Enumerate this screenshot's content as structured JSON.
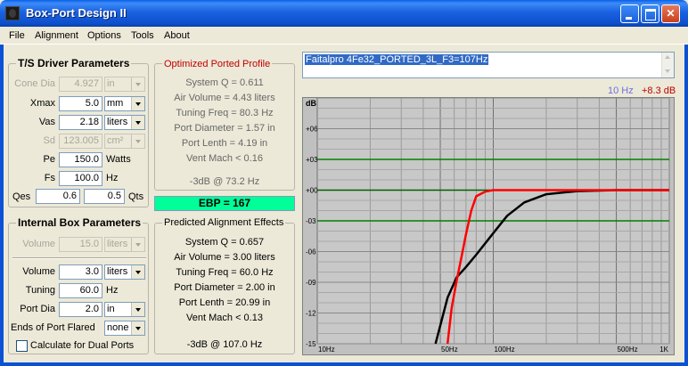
{
  "window": {
    "title": "Box-Port Design II"
  },
  "menu": [
    "File",
    "Alignment",
    "Options",
    "Tools",
    "About"
  ],
  "ts": {
    "title": "T/S Driver Parameters",
    "cone_dia": {
      "label": "Cone Dia",
      "value": "4.927",
      "unit": "in"
    },
    "xmax": {
      "label": "Xmax",
      "value": "5.0",
      "unit": "mm"
    },
    "vas": {
      "label": "Vas",
      "value": "2.18",
      "unit": "liters"
    },
    "sd": {
      "label": "Sd",
      "value": "123.005",
      "unit": "cm²"
    },
    "pe": {
      "label": "Pe",
      "value": "150.0",
      "unit": "Watts"
    },
    "fs": {
      "label": "Fs",
      "value": "100.0",
      "unit": "Hz"
    },
    "qes": {
      "label": "Qes",
      "value": "0.6"
    },
    "qts": {
      "label": "Qts",
      "value": "0.5"
    }
  },
  "opt": {
    "title": "Optimized Ported Profile",
    "lines": [
      "System Q = 0.611",
      "Air Volume = 4.43 liters",
      "Tuning Freq = 80.3 Hz",
      "Port Diameter = 1.57 in",
      "Port Lenth = 4.19 in",
      "Vent Mach < 0.16"
    ],
    "f3": "-3dB @ 73.2 Hz"
  },
  "ebp": "EBP = 167",
  "box": {
    "title": "Internal Box Parameters",
    "volume_dis": {
      "label": "Volume",
      "value": "15.0",
      "unit": "liters"
    },
    "volume": {
      "label": "Volume",
      "value": "3.0",
      "unit": "liters"
    },
    "tuning": {
      "label": "Tuning",
      "value": "60.0",
      "unit": "Hz"
    },
    "port_dia": {
      "label": "Port Dia",
      "value": "2.0",
      "unit": "in"
    },
    "flared": {
      "label": "Ends of Port Flared",
      "value": "none"
    },
    "dual": {
      "label": "Calculate for Dual Ports",
      "checked": false
    }
  },
  "pred": {
    "title": "Predicted Alignment Effects",
    "lines": [
      "System Q = 0.657",
      "Air Volume = 3.00 liters",
      "Tuning Freq = 60.0 Hz",
      "Port Diameter = 2.00 in",
      "Port Lenth = 20.99 in",
      "Vent Mach < 0.13"
    ],
    "f3": "-3dB @ 107.0 Hz"
  },
  "design_name": "Faitalpro 4Fe32_PORTED_3L_F3=107Hz",
  "readout": {
    "freq": "10 Hz",
    "db": "+8.3 dB"
  },
  "chart_data": {
    "type": "line",
    "xscale": "log",
    "xlim": [
      10,
      1000
    ],
    "ylim": [
      -15,
      9
    ],
    "ylabel": "dB",
    "yticks": [
      "+06",
      "+03",
      "+00",
      "-03",
      "-06",
      "-09",
      "-12",
      "-15"
    ],
    "xticks": [
      "10Hz",
      "50Hz",
      "100Hz",
      "500Hz",
      "1K"
    ],
    "grid": true,
    "series": [
      {
        "color": "#000000",
        "x": [
          47,
          55,
          62,
          70,
          80,
          100,
          120,
          150,
          200,
          300,
          500,
          1000
        ],
        "y": [
          -15,
          -10.5,
          -8.5,
          -7.5,
          -6.3,
          -4.2,
          -2.5,
          -1.2,
          -0.4,
          -0.1,
          0,
          0
        ]
      },
      {
        "color": "#ff0000",
        "x": [
          55,
          58,
          62,
          66,
          70,
          75,
          80,
          90,
          100,
          200,
          500,
          1000
        ],
        "y": [
          -15,
          -11.5,
          -8.8,
          -6.5,
          -4.3,
          -2.0,
          -0.6,
          -0.15,
          0,
          0,
          0,
          0
        ]
      }
    ],
    "reference_lines": [
      {
        "y": 3,
        "color": "#008000"
      },
      {
        "y": -3,
        "color": "#008000"
      }
    ]
  }
}
